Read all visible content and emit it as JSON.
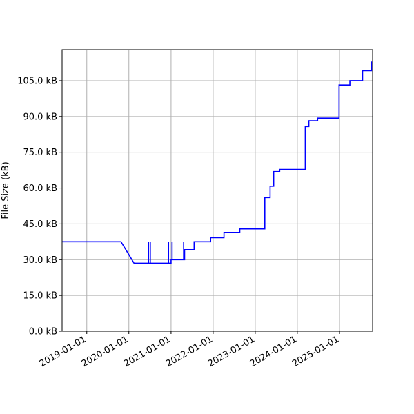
{
  "chart_data": {
    "type": "line",
    "title": "",
    "xlabel": "",
    "ylabel": "File Size (kB)",
    "x_type": "date",
    "xlim": [
      "2018-06-01",
      "2025-10-15"
    ],
    "ylim": [
      0,
      118
    ],
    "grid": true,
    "legend": "none",
    "x_ticks": [
      "2019-01-01",
      "2020-01-01",
      "2021-01-01",
      "2022-01-01",
      "2023-01-01",
      "2024-01-01",
      "2025-01-01"
    ],
    "y_ticks": [
      0,
      15,
      30,
      45,
      60,
      75,
      90,
      105
    ],
    "y_tick_labels": [
      "0.0 kB",
      "15.0 kB",
      "30.0 kB",
      "45.0 kB",
      "60.0 kB",
      "75.0 kB",
      "90.0 kB",
      "105.0 kB"
    ],
    "series": [
      {
        "color": "#0000ff",
        "points": [
          [
            "2018-06-01",
            37.5
          ],
          [
            "2019-10-25",
            37.5
          ],
          [
            "2020-02-15",
            28.5
          ],
          [
            "2020-06-20",
            28.5
          ],
          [
            "2020-06-20",
            37.5
          ],
          [
            "2020-06-20",
            28.5
          ],
          [
            "2020-07-05",
            28.5
          ],
          [
            "2020-07-05",
            37.5
          ],
          [
            "2020-07-05",
            28.5
          ],
          [
            "2020-12-10",
            28.5
          ],
          [
            "2020-12-10",
            37.5
          ],
          [
            "2020-12-10",
            28.5
          ],
          [
            "2021-01-01",
            28.5
          ],
          [
            "2021-01-01",
            30.0
          ],
          [
            "2021-01-10",
            30.0
          ],
          [
            "2021-01-10",
            37.5
          ],
          [
            "2021-01-10",
            30.0
          ],
          [
            "2021-04-20",
            30.0
          ],
          [
            "2021-04-20",
            37.5
          ],
          [
            "2021-04-20",
            30.0
          ],
          [
            "2021-04-28",
            30.0
          ],
          [
            "2021-04-28",
            34.2
          ],
          [
            "2021-07-20",
            34.2
          ],
          [
            "2021-07-20",
            37.5
          ],
          [
            "2021-12-10",
            37.5
          ],
          [
            "2021-12-10",
            39.2
          ],
          [
            "2022-04-05",
            39.2
          ],
          [
            "2022-04-05",
            41.4
          ],
          [
            "2022-08-20",
            41.4
          ],
          [
            "2022-08-20",
            42.9
          ],
          [
            "2023-03-25",
            42.9
          ],
          [
            "2023-03-25",
            56.0
          ],
          [
            "2023-05-10",
            56.0
          ],
          [
            "2023-05-10",
            60.8
          ],
          [
            "2023-06-10",
            60.8
          ],
          [
            "2023-06-10",
            66.9
          ],
          [
            "2023-08-01",
            66.9
          ],
          [
            "2023-08-01",
            67.8
          ],
          [
            "2024-03-10",
            67.8
          ],
          [
            "2024-03-10",
            85.8
          ],
          [
            "2024-04-10",
            85.8
          ],
          [
            "2024-04-10",
            88.2
          ],
          [
            "2024-06-25",
            88.2
          ],
          [
            "2024-06-25",
            89.3
          ],
          [
            "2024-12-28",
            89.3
          ],
          [
            "2024-12-28",
            103.2
          ],
          [
            "2025-04-01",
            103.2
          ],
          [
            "2025-04-01",
            105.0
          ],
          [
            "2025-07-20",
            105.0
          ],
          [
            "2025-07-20",
            109.2
          ],
          [
            "2025-10-05",
            109.2
          ],
          [
            "2025-10-05",
            113.0
          ]
        ]
      }
    ]
  }
}
